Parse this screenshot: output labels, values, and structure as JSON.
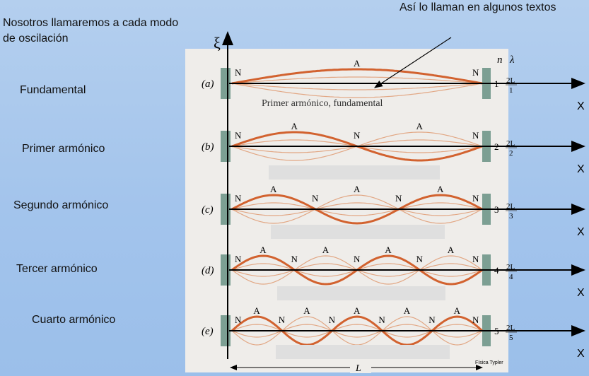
{
  "intro_text": "Nosotros llamaremos a cada modo de oscilación",
  "annotation_text": "Así lo llaman en algunos textos",
  "modes": [
    {
      "name": "Fundamental",
      "tag": "(a)",
      "n": "1",
      "lambda_num": "2L",
      "lambda_den": "1",
      "n_harm": 1
    },
    {
      "name": "Primer armónico",
      "tag": "(b)",
      "n": "2",
      "lambda_num": "2L",
      "lambda_den": "2",
      "n_harm": 2
    },
    {
      "name": "Segundo armónico",
      "tag": "(c)",
      "n": "3",
      "lambda_num": "2L",
      "lambda_den": "3",
      "n_harm": 3
    },
    {
      "name": "Tercer armónico",
      "tag": "(d)",
      "n": "4",
      "lambda_num": "2L",
      "lambda_den": "4",
      "n_harm": 4
    },
    {
      "name": "Cuarto armónico",
      "tag": "(e)",
      "n": "5",
      "lambda_num": "2L",
      "lambda_den": "5",
      "n_harm": 5
    }
  ],
  "figure": {
    "caption_a": "Primer armónico, fundamental",
    "header_n": "n",
    "header_lambda": "λ",
    "node_label": "N",
    "antinode_label": "A",
    "length_label": "L",
    "credit": "Física Typler",
    "y_axis_label": "ξ",
    "x_axis_label": "X"
  },
  "colors": {
    "string_bold": "#d2622f",
    "string_light": "#e2a784",
    "clamp": "#7c9f93",
    "background": "#a8c7ec"
  }
}
